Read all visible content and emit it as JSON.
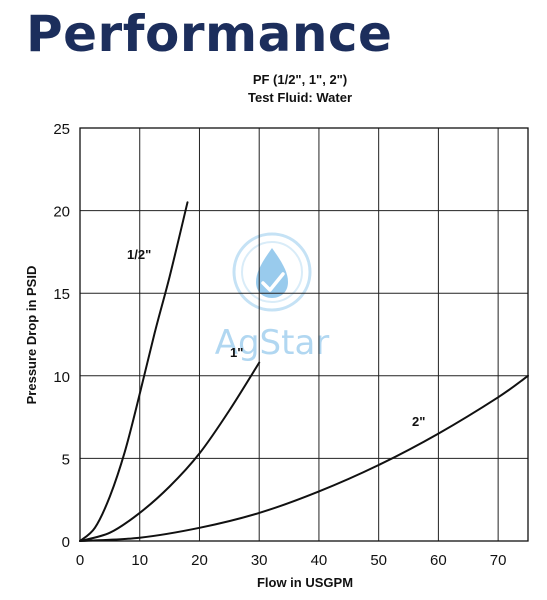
{
  "heading": "Performance",
  "watermark": {
    "text": "AgStar",
    "icon": "water-drop-check-icon",
    "color": "#a9d3f0"
  },
  "chart_data": {
    "type": "line",
    "title": "PF (1/2\", 1\", 2\")",
    "subtitle": "Test Fluid: Water",
    "xlabel": "Flow in USGPM",
    "ylabel": "Pressure Drop in PSID",
    "xlim": [
      0,
      75
    ],
    "ylim": [
      0,
      25
    ],
    "xticks": [
      0,
      10,
      20,
      30,
      40,
      50,
      60,
      70
    ],
    "yticks": [
      0,
      5,
      10,
      15,
      20,
      25
    ],
    "grid": true,
    "series": [
      {
        "name": "1/2\"",
        "x": [
          0,
          2.5,
          5,
          7.5,
          10,
          12.5,
          15,
          18
        ],
        "y": [
          0,
          0.8,
          2.7,
          5.4,
          8.9,
          12.6,
          16.0,
          20.5
        ]
      },
      {
        "name": "1\"",
        "x": [
          0,
          5,
          10,
          15,
          20,
          25,
          30
        ],
        "y": [
          0,
          0.5,
          1.7,
          3.3,
          5.3,
          7.9,
          10.8
        ]
      },
      {
        "name": "2\"",
        "x": [
          0,
          10,
          20,
          30,
          40,
          50,
          60,
          70,
          75
        ],
        "y": [
          0,
          0.2,
          0.8,
          1.7,
          3.0,
          4.6,
          6.5,
          8.7,
          10.0
        ]
      }
    ]
  }
}
